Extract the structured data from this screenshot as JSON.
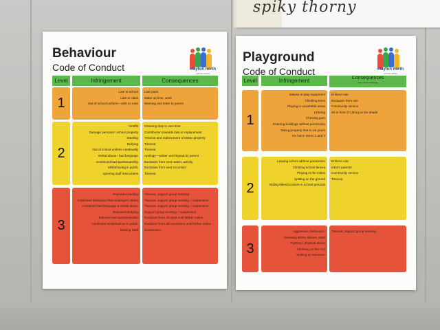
{
  "note": {
    "text": "spiky thorny"
  },
  "behaviour": {
    "title": "Behaviour",
    "subtitle": "Code of Conduct",
    "logo": {
      "name": "clayton north",
      "sub": "primary school"
    },
    "headers": {
      "level": "Level",
      "infringement": "Infringement",
      "consequences": "Consequences"
    },
    "levels": [
      {
        "num": "1",
        "infringements": [
          "Late to school",
          "Late to class",
          "Out of school uniform—with no note"
        ],
        "consequences": [
          "Late pass",
          "Make up time, work",
          "Warning and letter to parent"
        ]
      },
      {
        "num": "2",
        "infringements": [
          "Graffiti",
          "Damage personal / school property",
          "Stealing",
          "Bullying",
          "Out of school uniform continually",
          "Verbal abuse / bad language",
          "Continued bad sportsmanship",
          "Misbehaving in public",
          "Ignoring staff instructions"
        ],
        "consequences": [
          "Cleaning duty in own time",
          "Contribution towards loss or replacement",
          "Timeout and replacement of stolen property",
          "Timeout",
          "Timeout",
          "Apology—written and signed by parent",
          "Exclusion from next match, activity",
          "Exclusion from next excursion",
          "Timeout"
        ]
      },
      {
        "num": "3",
        "infringements": [
          "Repeated stealing",
          "Continued behaviour that endangers others",
          "",
          "Continued bad language & verbal abuse",
          "Repeated Bullying",
          "Extreme bad sportsmanship",
          "Continued misbehaviour in public",
          "",
          "Missing Staff"
        ],
        "consequences": [
          "Timeout, support group meeting",
          "Timeout, support group meeting + suspension",
          "",
          "Timeout, support group meeting + suspension",
          "",
          "Support group meeting + suspension",
          "Exclusion from all sport until further notice",
          "Exclusion from all excursions until further notice",
          "Suspension"
        ]
      }
    ]
  },
  "playground": {
    "title": "Playground",
    "subtitle": "Code of Conduct",
    "logo": {
      "name": "clayton north",
      "sub": "primary school"
    },
    "headers": {
      "level": "Level",
      "infringement": "Infringement",
      "consequences": "Consequences",
      "consequences_note": "(One of the following)"
    },
    "levels": [
      {
        "num": "1",
        "infringements": [
          "Misuse of play equipment",
          "Climbing trees",
          "Playing in unsuitable areas",
          "Littering",
          "Chewing gum",
          "Entering buildings without permission",
          "Taking property that is not yours",
          "No hat in terms 1 and 4"
        ],
        "consequences": [
          "Enforce rule",
          "Exclusion from use",
          "Community service",
          "",
          "",
          "",
          "",
          "Sit in front of Library in the shade"
        ]
      },
      {
        "num": "2",
        "infringements": [
          "Leaving school without permission",
          "Climbing school fences",
          "Playing in the toilets",
          "Spitting on the ground",
          "Riding bikes/scooters in school grounds"
        ],
        "consequences": [
          "Enforce rule",
          "Inform parents",
          "Community service",
          "Timeout"
        ]
      },
      {
        "num": "3",
        "infringements": [
          "Aggressive, behaviour-",
          "Throwing sticks, stones, sand",
          "Fighting / physical abuse",
          "Climbing on the roof",
          "Spitting on someone"
        ],
        "consequences": [
          "Timeout, support group meeting"
        ]
      }
    ]
  }
}
